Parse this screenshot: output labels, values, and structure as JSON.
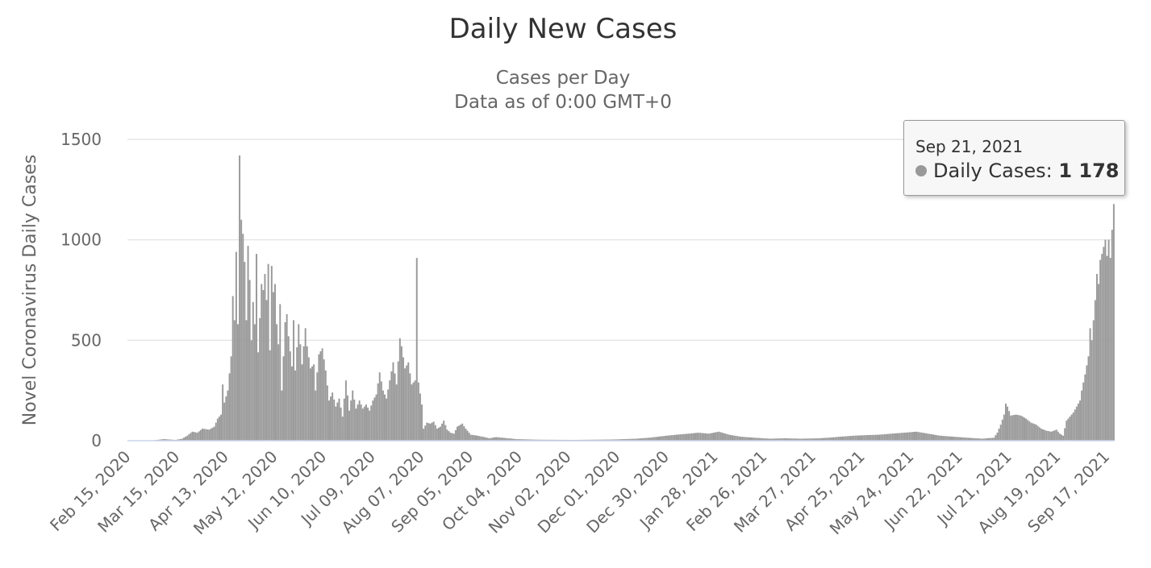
{
  "chart_data": {
    "type": "bar",
    "title": "Daily New Cases",
    "subtitle_line1": "Cases per Day",
    "subtitle_line2": "Data as of 0:00 GMT+0",
    "ylabel": "Novel Coronavirus Daily Cases",
    "xlabel": "",
    "ylim": [
      0,
      1500
    ],
    "yticks": [
      "0",
      "500",
      "1000",
      "1500"
    ],
    "x_start": "Feb 15, 2020",
    "x_end": "Sep 21, 2021",
    "xtick_labels": [
      "Feb 15, 2020",
      "Mar 15, 2020",
      "Apr 13, 2020",
      "May 12, 2020",
      "Jun 10, 2020",
      "Jul 09, 2020",
      "Aug 07, 2020",
      "Sep 05, 2020",
      "Oct 04, 2020",
      "Nov 02, 2020",
      "Dec 01, 2020",
      "Dec 30, 2020",
      "Jan 28, 2021",
      "Feb 26, 2021",
      "Mar 27, 2021",
      "Apr 25, 2021",
      "May 24, 2021",
      "Jun 22, 2021",
      "Jul 21, 2021",
      "Aug 19, 2021",
      "Sep 17, 2021"
    ],
    "grid": true,
    "bar_color": "#999999",
    "series": [
      {
        "name": "Daily Cases",
        "points": [
          [
            "Mar 01, 2020",
            2
          ],
          [
            "Mar 07, 2020",
            8
          ],
          [
            "Mar 14, 2020",
            4
          ],
          [
            "Mar 18, 2020",
            10
          ],
          [
            "Mar 21, 2020",
            25
          ],
          [
            "Mar 24, 2020",
            45
          ],
          [
            "Mar 27, 2020",
            40
          ],
          [
            "Mar 30, 2020",
            60
          ],
          [
            "Apr 03, 2020",
            55
          ],
          [
            "Apr 06, 2020",
            70
          ],
          [
            "Apr 08, 2020",
            110
          ],
          [
            "Apr 10, 2020",
            130
          ],
          [
            "Apr 11, 2020",
            280
          ],
          [
            "Apr 12, 2020",
            190
          ],
          [
            "Apr 14, 2020",
            250
          ],
          [
            "Apr 16, 2020",
            420
          ],
          [
            "Apr 17, 2020",
            720
          ],
          [
            "Apr 18, 2020",
            600
          ],
          [
            "Apr 19, 2020",
            940
          ],
          [
            "Apr 20, 2020",
            580
          ],
          [
            "Apr 21, 2020",
            1420
          ],
          [
            "Apr 22, 2020",
            1100
          ],
          [
            "Apr 23, 2020",
            1030
          ],
          [
            "Apr 24, 2020",
            890
          ],
          [
            "Apr 25, 2020",
            600
          ],
          [
            "Apr 26, 2020",
            970
          ],
          [
            "Apr 27, 2020",
            800
          ],
          [
            "Apr 28, 2020",
            500
          ],
          [
            "Apr 29, 2020",
            690
          ],
          [
            "Apr 30, 2020",
            580
          ],
          [
            "May 01, 2020",
            930
          ],
          [
            "May 02, 2020",
            440
          ],
          [
            "May 04, 2020",
            780
          ],
          [
            "May 05, 2020",
            750
          ],
          [
            "May 06, 2020",
            830
          ],
          [
            "May 07, 2020",
            700
          ],
          [
            "May 08, 2020",
            880
          ],
          [
            "May 09, 2020",
            450
          ],
          [
            "May 10, 2020",
            870
          ],
          [
            "May 11, 2020",
            740
          ],
          [
            "May 12, 2020",
            780
          ],
          [
            "May 13, 2020",
            580
          ],
          [
            "May 14, 2020",
            480
          ],
          [
            "May 15, 2020",
            680
          ],
          [
            "May 16, 2020",
            250
          ],
          [
            "May 18, 2020",
            590
          ],
          [
            "May 19, 2020",
            630
          ],
          [
            "May 20, 2020",
            520
          ],
          [
            "May 22, 2020",
            370
          ],
          [
            "May 23, 2020",
            600
          ],
          [
            "May 24, 2020",
            350
          ],
          [
            "May 26, 2020",
            580
          ],
          [
            "May 28, 2020",
            380
          ],
          [
            "May 30, 2020",
            560
          ],
          [
            "May 31, 2020",
            470
          ],
          [
            "Jun 02, 2020",
            360
          ],
          [
            "Jun 04, 2020",
            380
          ],
          [
            "Jun 05, 2020",
            250
          ],
          [
            "Jun 07, 2020",
            430
          ],
          [
            "Jun 09, 2020",
            460
          ],
          [
            "Jun 11, 2020",
            350
          ],
          [
            "Jun 13, 2020",
            200
          ],
          [
            "Jun 15, 2020",
            240
          ],
          [
            "Jun 17, 2020",
            170
          ],
          [
            "Jun 19, 2020",
            210
          ],
          [
            "Jun 21, 2020",
            120
          ],
          [
            "Jun 23, 2020",
            300
          ],
          [
            "Jun 25, 2020",
            150
          ],
          [
            "Jun 27, 2020",
            250
          ],
          [
            "Jun 29, 2020",
            160
          ],
          [
            "Jul 01, 2020",
            200
          ],
          [
            "Jul 03, 2020",
            160
          ],
          [
            "Jul 05, 2020",
            180
          ],
          [
            "Jul 07, 2020",
            150
          ],
          [
            "Jul 09, 2020",
            200
          ],
          [
            "Jul 11, 2020",
            230
          ],
          [
            "Jul 13, 2020",
            340
          ],
          [
            "Jul 15, 2020",
            250
          ],
          [
            "Jul 17, 2020",
            210
          ],
          [
            "Jul 19, 2020",
            300
          ],
          [
            "Jul 21, 2020",
            390
          ],
          [
            "Jul 23, 2020",
            280
          ],
          [
            "Jul 25, 2020",
            510
          ],
          [
            "Jul 26, 2020",
            470
          ],
          [
            "Jul 28, 2020",
            360
          ],
          [
            "Jul 30, 2020",
            390
          ],
          [
            "Aug 01, 2020",
            280
          ],
          [
            "Aug 03, 2020",
            300
          ],
          [
            "Aug 04, 2020",
            910
          ],
          [
            "Aug 05, 2020",
            290
          ],
          [
            "Aug 07, 2020",
            180
          ],
          [
            "Aug 08, 2020",
            60
          ],
          [
            "Aug 10, 2020",
            90
          ],
          [
            "Aug 12, 2020",
            85
          ],
          [
            "Aug 14, 2020",
            95
          ],
          [
            "Aug 16, 2020",
            60
          ],
          [
            "Aug 18, 2020",
            70
          ],
          [
            "Aug 20, 2020",
            100
          ],
          [
            "Aug 22, 2020",
            55
          ],
          [
            "Aug 24, 2020",
            40
          ],
          [
            "Aug 26, 2020",
            35
          ],
          [
            "Aug 28, 2020",
            70
          ],
          [
            "Aug 31, 2020",
            85
          ],
          [
            "Sep 02, 2020",
            60
          ],
          [
            "Sep 05, 2020",
            30
          ],
          [
            "Sep 09, 2020",
            25
          ],
          [
            "Sep 12, 2020",
            20
          ],
          [
            "Sep 16, 2020",
            12
          ],
          [
            "Sep 20, 2020",
            18
          ],
          [
            "Oct 02, 2020",
            8
          ],
          [
            "Oct 15, 2020",
            5
          ],
          [
            "Nov 05, 2020",
            4
          ],
          [
            "Nov 28, 2020",
            6
          ],
          [
            "Dec 12, 2020",
            10
          ],
          [
            "Dec 20, 2020",
            15
          ],
          [
            "Dec 25, 2020",
            20
          ],
          [
            "Dec 30, 2020",
            25
          ],
          [
            "Jan 05, 2021",
            30
          ],
          [
            "Jan 12, 2021",
            35
          ],
          [
            "Jan 18, 2021",
            40
          ],
          [
            "Jan 24, 2021",
            35
          ],
          [
            "Jan 30, 2021",
            45
          ],
          [
            "Feb 05, 2021",
            30
          ],
          [
            "Feb 12, 2021",
            20
          ],
          [
            "Feb 20, 2021",
            15
          ],
          [
            "Mar 01, 2021",
            10
          ],
          [
            "Mar 10, 2021",
            12
          ],
          [
            "Mar 20, 2021",
            10
          ],
          [
            "Mar 30, 2021",
            12
          ],
          [
            "Apr 05, 2021",
            15
          ],
          [
            "Apr 12, 2021",
            20
          ],
          [
            "Apr 20, 2021",
            25
          ],
          [
            "Apr 28, 2021",
            28
          ],
          [
            "May 05, 2021",
            30
          ],
          [
            "May 12, 2021",
            35
          ],
          [
            "May 20, 2021",
            40
          ],
          [
            "May 27, 2021",
            45
          ],
          [
            "Jun 03, 2021",
            35
          ],
          [
            "Jun 10, 2021",
            25
          ],
          [
            "Jun 18, 2021",
            20
          ],
          [
            "Jun 26, 2021",
            15
          ],
          [
            "Jul 05, 2021",
            10
          ],
          [
            "Jul 12, 2021",
            15
          ],
          [
            "Jul 14, 2021",
            40
          ],
          [
            "Jul 16, 2021",
            80
          ],
          [
            "Jul 18, 2021",
            130
          ],
          [
            "Jul 19, 2021",
            185
          ],
          [
            "Jul 20, 2021",
            170
          ],
          [
            "Jul 22, 2021",
            125
          ],
          [
            "Jul 25, 2021",
            130
          ],
          [
            "Jul 28, 2021",
            125
          ],
          [
            "Jul 31, 2021",
            110
          ],
          [
            "Aug 03, 2021",
            90
          ],
          [
            "Aug 06, 2021",
            80
          ],
          [
            "Aug 09, 2021",
            60
          ],
          [
            "Aug 12, 2021",
            50
          ],
          [
            "Aug 15, 2021",
            45
          ],
          [
            "Aug 18, 2021",
            55
          ],
          [
            "Aug 20, 2021",
            35
          ],
          [
            "Aug 22, 2021",
            25
          ],
          [
            "Aug 24, 2021",
            100
          ],
          [
            "Aug 26, 2021",
            120
          ],
          [
            "Aug 28, 2021",
            140
          ],
          [
            "Aug 30, 2021",
            170
          ],
          [
            "Sep 01, 2021",
            200
          ],
          [
            "Sep 02, 2021",
            250
          ],
          [
            "Sep 04, 2021",
            330
          ],
          [
            "Sep 06, 2021",
            420
          ],
          [
            "Sep 07, 2021",
            560
          ],
          [
            "Sep 08, 2021",
            500
          ],
          [
            "Sep 09, 2021",
            600
          ],
          [
            "Sep 10, 2021",
            700
          ],
          [
            "Sep 11, 2021",
            830
          ],
          [
            "Sep 12, 2021",
            780
          ],
          [
            "Sep 13, 2021",
            900
          ],
          [
            "Sep 14, 2021",
            930
          ],
          [
            "Sep 16, 2021",
            1000
          ],
          [
            "Sep 17, 2021",
            920
          ],
          [
            "Sep 18, 2021",
            1000
          ],
          [
            "Sep 19, 2021",
            910
          ],
          [
            "Sep 20, 2021",
            1050
          ],
          [
            "Sep 21, 2021",
            1178
          ]
        ]
      }
    ],
    "tooltip": {
      "date": "Sep 21, 2021",
      "series_label": "Daily Cases:",
      "value": "1 178"
    }
  }
}
